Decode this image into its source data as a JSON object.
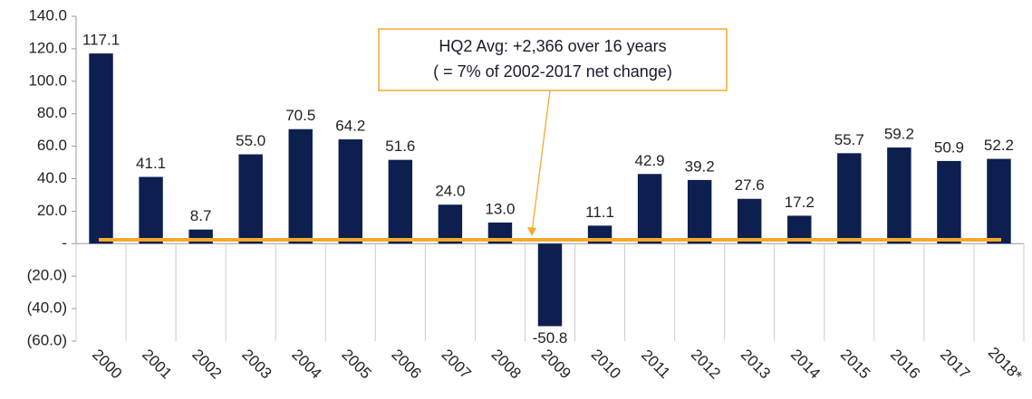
{
  "chart_data": {
    "type": "bar",
    "categories": [
      "2000",
      "2001",
      "2002",
      "2003",
      "2004",
      "2005",
      "2006",
      "2007",
      "2008",
      "2009",
      "2010",
      "2011",
      "2012",
      "2013",
      "2014",
      "2015",
      "2016",
      "2017",
      "2018*"
    ],
    "values": [
      117.1,
      41.1,
      8.7,
      55.0,
      70.5,
      64.2,
      51.6,
      24.0,
      13.0,
      -50.8,
      11.1,
      42.9,
      39.2,
      27.6,
      17.2,
      55.7,
      59.2,
      50.9,
      52.2
    ],
    "value_labels": [
      "117.1",
      "41.1",
      "8.7",
      "55.0",
      "70.5",
      "64.2",
      "51.6",
      "24.0",
      "13.0",
      "-50.8",
      "11.1",
      "42.9",
      "39.2",
      "27.6",
      "17.2",
      "55.7",
      "59.2",
      "50.9",
      "52.2"
    ],
    "color": "#0c1f4f",
    "ylim": [
      -60,
      140
    ],
    "yticks": [
      {
        "value": 140,
        "label": "140.0"
      },
      {
        "value": 120,
        "label": "120.0"
      },
      {
        "value": 100,
        "label": "100.0"
      },
      {
        "value": 80,
        "label": "80.0"
      },
      {
        "value": 60,
        "label": "60.0"
      },
      {
        "value": 40,
        "label": "40.0"
      },
      {
        "value": 20,
        "label": "20.0"
      },
      {
        "value": 0,
        "label": "-"
      },
      {
        "value": -20,
        "label": "(20.0)"
      },
      {
        "value": -40,
        "label": "(40.0)"
      },
      {
        "value": -60,
        "label": "(60.0)"
      }
    ],
    "average": 2.366,
    "average_color": "#f2aa2e",
    "annotation": [
      "HQ2 Avg: +2,366 over 16 years",
      "( = 7% of 2002-2017 net change)"
    ]
  }
}
